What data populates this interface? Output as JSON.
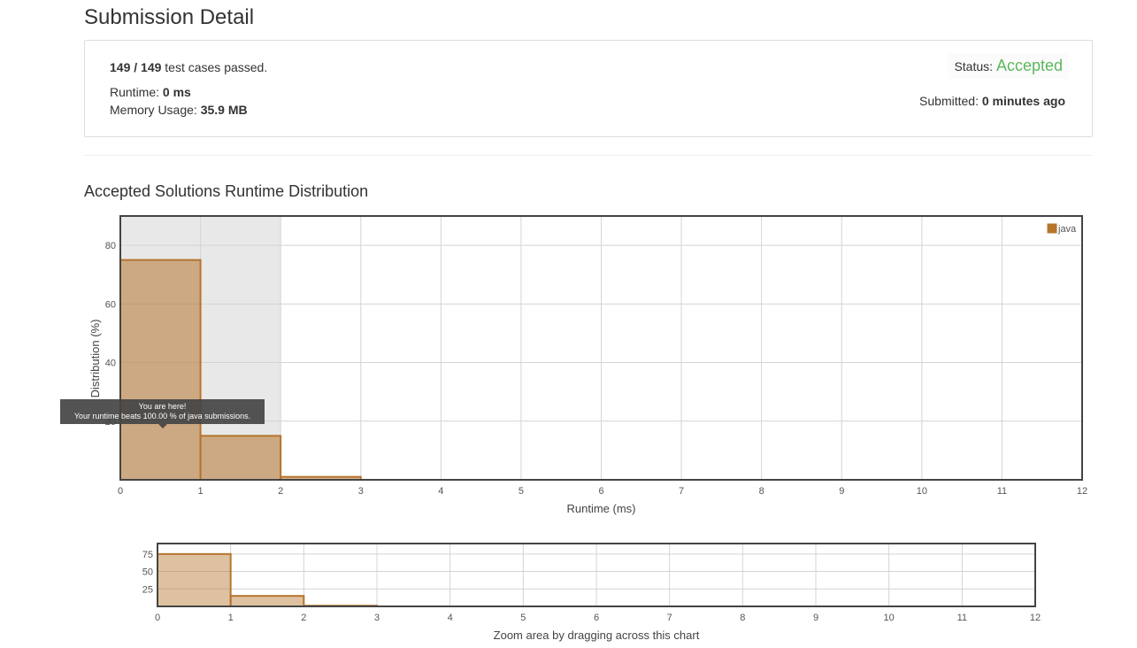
{
  "page": {
    "title": "Submission Detail"
  },
  "summary": {
    "passed": "149",
    "separator": "/",
    "total": "149",
    "passed_suffix": "test cases passed.",
    "runtime_label": "Runtime:",
    "runtime_value": "0 ms",
    "memory_label": "Memory Usage:",
    "memory_value": "35.9 MB",
    "status_label": "Status:",
    "status_value": "Accepted",
    "status_color": "#5cb85c",
    "submitted_label": "Submitted:",
    "submitted_value": "0 minutes ago"
  },
  "section": {
    "title": "Accepted Solutions Runtime Distribution"
  },
  "chart_data": [
    {
      "type": "bar",
      "title": "",
      "xlabel": "Runtime (ms)",
      "ylabel": "Distribution (%)",
      "xlim": [
        0,
        12
      ],
      "ylim": [
        0,
        90
      ],
      "x_ticks": [
        "0",
        "1",
        "2",
        "3",
        "4",
        "5",
        "6",
        "7",
        "8",
        "9",
        "10",
        "11",
        "12"
      ],
      "y_ticks": [
        "20",
        "40",
        "60",
        "80"
      ],
      "bin_width": 1,
      "highlight_range": [
        0,
        2
      ],
      "grid": true,
      "legend_position": "top-right",
      "series": [
        {
          "name": "java",
          "color": "#b5752d",
          "bins": [
            {
              "x": 0,
              "value": 75
            },
            {
              "x": 1,
              "value": 15
            },
            {
              "x": 2,
              "value": 1
            }
          ]
        }
      ],
      "tooltip": {
        "title": "You are here!",
        "text": "Your runtime beats 100.00 % of java submissions."
      }
    },
    {
      "type": "bar",
      "title": "",
      "xlabel": "Zoom area by dragging across this chart",
      "ylabel": "",
      "xlim": [
        0,
        12
      ],
      "ylim": [
        0,
        90
      ],
      "x_ticks": [
        "0",
        "1",
        "2",
        "3",
        "4",
        "5",
        "6",
        "7",
        "8",
        "9",
        "10",
        "11",
        "12"
      ],
      "y_ticks": [
        "25",
        "50",
        "75"
      ],
      "grid": true,
      "series": [
        {
          "name": "",
          "color": "#b5752d",
          "bins": [
            {
              "x": 0,
              "value": 75
            },
            {
              "x": 1,
              "value": 15
            },
            {
              "x": 2,
              "value": 1
            }
          ]
        }
      ]
    }
  ]
}
